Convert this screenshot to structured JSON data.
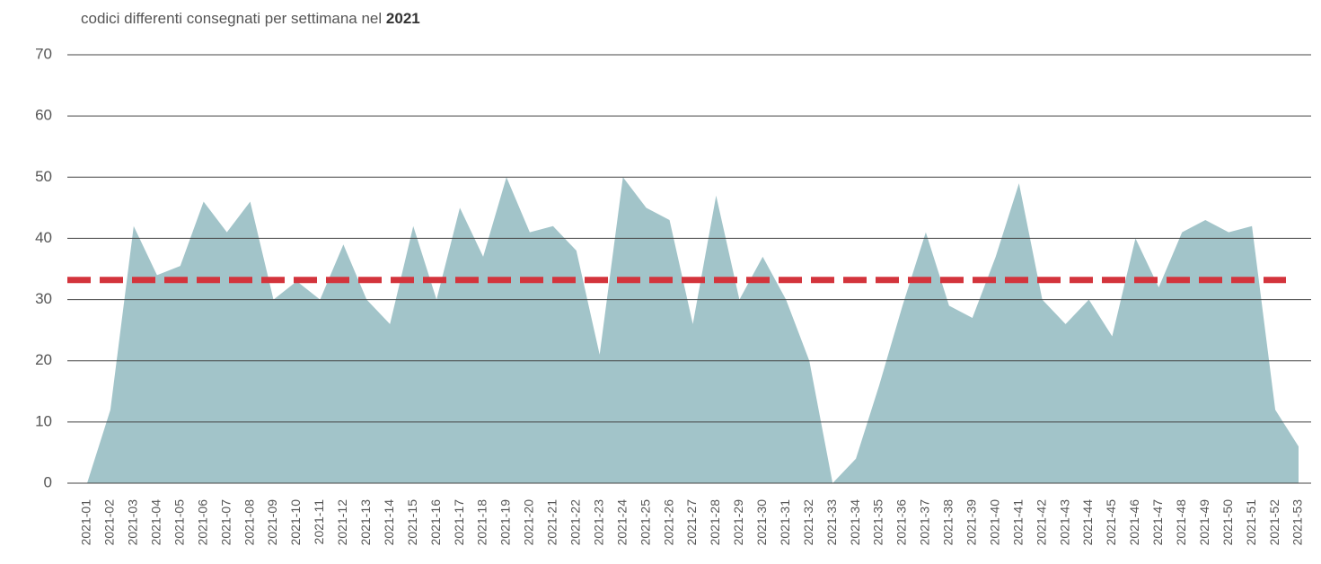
{
  "chart_data": {
    "type": "area",
    "title": [
      "codici differenti consegnati per settimana nel",
      "2021"
    ],
    "categories": [
      "2021-01",
      "2021-02",
      "2021-03",
      "2021-04",
      "2021-05",
      "2021-06",
      "2021-07",
      "2021-08",
      "2021-09",
      "2021-10",
      "2021-11",
      "2021-12",
      "2021-13",
      "2021-14",
      "2021-15",
      "2021-16",
      "2021-17",
      "2021-18",
      "2021-19",
      "2021-20",
      "2021-21",
      "2021-22",
      "2021-23",
      "2021-24",
      "2021-25",
      "2021-26",
      "2021-27",
      "2021-28",
      "2021-29",
      "2021-30",
      "2021-31",
      "2021-32",
      "2021-33",
      "2021-34",
      "2021-35",
      "2021-36",
      "2021-37",
      "2021-38",
      "2021-39",
      "2021-40",
      "2021-41",
      "2021-42",
      "2021-43",
      "2021-44",
      "2021-45",
      "2021-46",
      "2021-47",
      "2021-48",
      "2021-49",
      "2021-50",
      "2021-51",
      "2021-52",
      "2021-53"
    ],
    "values": [
      0,
      12,
      42,
      34,
      35.5,
      46,
      41,
      46,
      30,
      33,
      30,
      39,
      30,
      26,
      42,
      30,
      45,
      37,
      50,
      41,
      42,
      38,
      21,
      50,
      45,
      43,
      26,
      47,
      30,
      37,
      30,
      20,
      0,
      4,
      16,
      29,
      41,
      29,
      27,
      37,
      49,
      30,
      26,
      30,
      24,
      40,
      32,
      41,
      43,
      41,
      42,
      12,
      6
    ],
    "color": "#a2c4c9",
    "reference_line": {
      "value": 33.2,
      "color": "#d3343c"
    },
    "ylim": [
      0,
      70
    ],
    "yticks": [
      0,
      10,
      20,
      30,
      40,
      50,
      60,
      70
    ],
    "grid": true
  }
}
